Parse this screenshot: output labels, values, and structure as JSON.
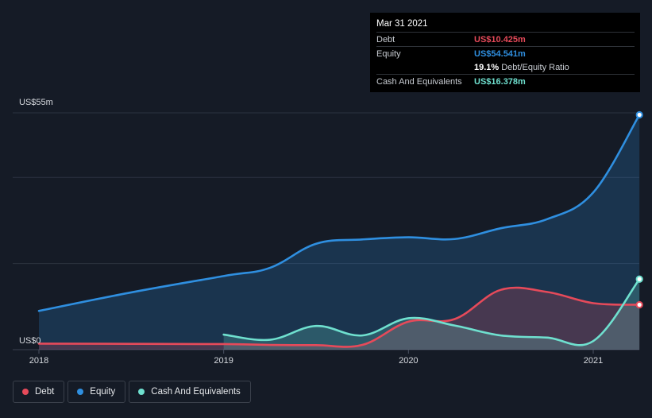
{
  "tooltip": {
    "date": "Mar 31 2021",
    "debt_label": "Debt",
    "debt_value": "US$10.425m",
    "equity_label": "Equity",
    "equity_value": "US$54.541m",
    "ratio_value": "19.1%",
    "ratio_label": "Debt/Equity Ratio",
    "cash_label": "Cash And Equivalents",
    "cash_value": "US$16.378m"
  },
  "legend": {
    "debt": "Debt",
    "equity": "Equity",
    "cash": "Cash And Equivalents"
  },
  "colors": {
    "debt": "#e64a5a",
    "equity": "#2f8fe0",
    "cash": "#6fe0cf",
    "background": "#151b26",
    "grid": "#2c3340"
  },
  "chart_data": {
    "type": "area",
    "title": "",
    "xlabel": "",
    "ylabel": "",
    "y_axis_top_label": "US$55m",
    "y_axis_bottom_label": "US$0",
    "ylim": [
      0,
      55
    ],
    "xlim": [
      2017.92,
      2021.25
    ],
    "x_ticks": [
      2018,
      2019,
      2020,
      2021
    ],
    "x_tick_labels": [
      "2018",
      "2019",
      "2020",
      "2021"
    ],
    "legend_position": "bottom-left",
    "series": [
      {
        "name": "Equity",
        "key": "equity",
        "points": [
          [
            2018.0,
            9
          ],
          [
            2018.5,
            13.3
          ],
          [
            2019.0,
            17.1
          ],
          [
            2019.25,
            19.0
          ],
          [
            2019.5,
            24.6
          ],
          [
            2019.75,
            25.6
          ],
          [
            2020.0,
            26.1
          ],
          [
            2020.25,
            25.7
          ],
          [
            2020.5,
            28.2
          ],
          [
            2020.75,
            30.3
          ],
          [
            2021.0,
            36.5
          ],
          [
            2021.25,
            54.541
          ]
        ]
      },
      {
        "name": "Debt",
        "key": "debt",
        "points": [
          [
            2018.0,
            1.4
          ],
          [
            2018.5,
            1.35
          ],
          [
            2019.0,
            1.3
          ],
          [
            2019.25,
            1.1
          ],
          [
            2019.5,
            1.05
          ],
          [
            2019.75,
            1.1
          ],
          [
            2020.0,
            6.5
          ],
          [
            2020.25,
            7.1
          ],
          [
            2020.5,
            13.9
          ],
          [
            2020.75,
            13.4
          ],
          [
            2021.0,
            10.8
          ],
          [
            2021.25,
            10.425
          ]
        ]
      },
      {
        "name": "Cash And Equivalents",
        "key": "cash",
        "points": [
          [
            2019.0,
            3.5
          ],
          [
            2019.25,
            2.3
          ],
          [
            2019.5,
            5.5
          ],
          [
            2019.75,
            3.3
          ],
          [
            2020.0,
            7.3
          ],
          [
            2020.25,
            5.6
          ],
          [
            2020.5,
            3.3
          ],
          [
            2020.75,
            2.8
          ],
          [
            2021.0,
            2.0
          ],
          [
            2021.25,
            16.378
          ]
        ]
      }
    ]
  }
}
